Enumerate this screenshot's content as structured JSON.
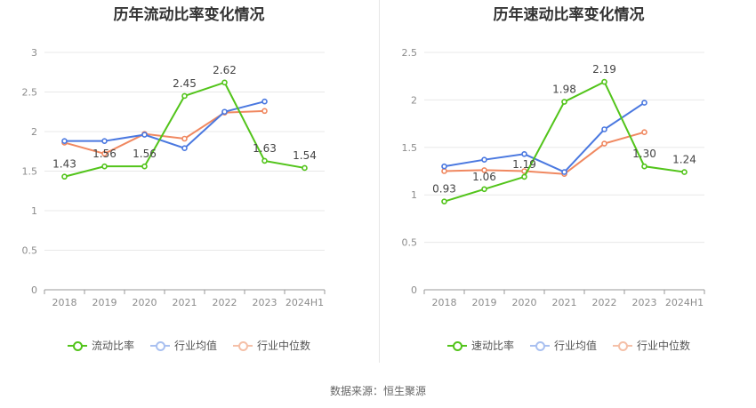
{
  "source": "数据来源：恒生聚源",
  "colors": {
    "main": "#52c41a",
    "avg": "#4a78e0",
    "median": "#f08860"
  },
  "chart_data": [
    {
      "type": "line",
      "title": "历年流动比率变化情况",
      "categories": [
        "2018",
        "2019",
        "2020",
        "2021",
        "2022",
        "2023",
        "2024H1"
      ],
      "ylim": [
        0,
        3
      ],
      "yticks": [
        0,
        0.5,
        1,
        1.5,
        2,
        2.5,
        3
      ],
      "ytick_labels": [
        "0",
        "0.5",
        "1",
        "1.5",
        "2",
        "2.5",
        "3"
      ],
      "grid": true,
      "legend_position": "bottom",
      "series": [
        {
          "name": "流动比率",
          "color": "#52c41a",
          "values": [
            1.43,
            1.56,
            1.56,
            2.45,
            2.62,
            1.63,
            1.54
          ],
          "labels": [
            "1.43",
            "1.56",
            "1.56",
            "2.45",
            "2.62",
            "1.63",
            "1.54"
          ]
        },
        {
          "name": "行业均值",
          "color": "#4a78e0",
          "values": [
            1.88,
            1.88,
            1.96,
            1.79,
            2.25,
            2.38,
            null
          ]
        },
        {
          "name": "行业中位数",
          "color": "#f08860",
          "values": [
            1.86,
            1.72,
            1.97,
            1.91,
            2.24,
            2.26,
            null
          ]
        }
      ]
    },
    {
      "type": "line",
      "title": "历年速动比率变化情况",
      "categories": [
        "2018",
        "2019",
        "2020",
        "2021",
        "2022",
        "2023",
        "2024H1"
      ],
      "ylim": [
        0,
        2.5
      ],
      "yticks": [
        0,
        0.5,
        1,
        1.5,
        2,
        2.5
      ],
      "ytick_labels": [
        "0",
        "0.5",
        "1",
        "1.5",
        "2",
        "2.5"
      ],
      "grid": true,
      "legend_position": "bottom",
      "series": [
        {
          "name": "速动比率",
          "color": "#52c41a",
          "values": [
            0.93,
            1.06,
            1.19,
            1.98,
            2.19,
            1.3,
            1.24
          ],
          "labels": [
            "0.93",
            "1.06",
            "1.19",
            "1.98",
            "2.19",
            "1.30",
            "1.24"
          ]
        },
        {
          "name": "行业均值",
          "color": "#4a78e0",
          "values": [
            1.3,
            1.37,
            1.43,
            1.24,
            1.69,
            1.97,
            null
          ]
        },
        {
          "name": "行业中位数",
          "color": "#f08860",
          "values": [
            1.25,
            1.26,
            1.25,
            1.22,
            1.54,
            1.66,
            null
          ]
        }
      ]
    }
  ]
}
